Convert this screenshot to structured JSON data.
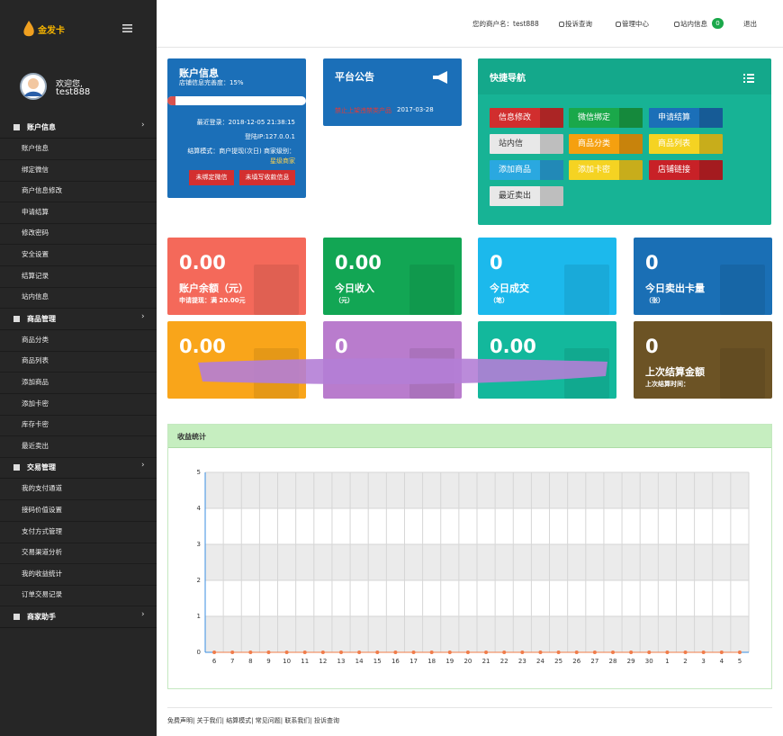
{
  "brand": "金发卡",
  "topbar": {
    "merchant": "您的商户名：test888",
    "items": [
      "投诉查询",
      "管理中心",
      "站内信息"
    ],
    "badge": "0",
    "logout": "退出"
  },
  "user": {
    "welcome": "欢迎您,",
    "name": "test888"
  },
  "menu": [
    {
      "title": "账户信息",
      "items": [
        "账户信息",
        "绑定微信",
        "商户信息修改",
        "申请结算",
        "修改密码",
        "安全设置",
        "结算记录",
        "站内信息"
      ]
    },
    {
      "title": "商品管理",
      "items": [
        "商品分类",
        "商品列表",
        "添加商品",
        "添加卡密",
        "库存卡密",
        "最近卖出"
      ]
    },
    {
      "title": "交易管理",
      "items": [
        "我的支付通道",
        "接码价值设置",
        "支付方式管理",
        "交易渠道分析",
        "我的收益统计",
        "订单交易记录"
      ]
    },
    {
      "title": "商家助手",
      "items": []
    }
  ],
  "account": {
    "title": "账户信息",
    "completeness": "店铺信息完善度：15%",
    "last_login": "最近登录：2018-12-05 21:38:15",
    "ip": "登陆IP:127.0.0.1",
    "mode": "结算模式：商户提现(次日) 商家级别：",
    "level": "星级商家",
    "buttons": [
      "未绑定微信",
      "未填写收款信息"
    ]
  },
  "notice": {
    "title": "平台公告",
    "text": "禁止上架违禁类产品",
    "date": "2017-03-28"
  },
  "quick_nav": {
    "title": "快捷导航",
    "buttons": [
      "信息修改",
      "微信绑定",
      "申请结算",
      "站内信",
      "商品分类",
      "商品列表",
      "添加商品",
      "添加卡密",
      "店铺链接",
      "最近卖出"
    ]
  },
  "stats": [
    {
      "value": "0.00",
      "label": "账户余额（元）",
      "sub": "申请提现：满 20.00元"
    },
    {
      "value": "0.00",
      "label": "今日收入",
      "sub": "（元）"
    },
    {
      "value": "0",
      "label": "今日成交",
      "sub": "（笔）"
    },
    {
      "value": "0",
      "label": "今日卖出卡量",
      "sub": "（张）"
    },
    {
      "value": "0.00"
    },
    {
      "value": "0"
    },
    {
      "value": "0.00"
    },
    {
      "value": "0",
      "label": "上次结算金额",
      "sub": "上次结算时间："
    }
  ],
  "chart_data": {
    "type": "line",
    "title": "收益统计",
    "categories": [
      "6",
      "7",
      "8",
      "9",
      "10",
      "11",
      "12",
      "13",
      "14",
      "15",
      "16",
      "17",
      "18",
      "19",
      "20",
      "21",
      "22",
      "23",
      "24",
      "25",
      "26",
      "27",
      "28",
      "29",
      "30",
      "1",
      "2",
      "3",
      "4",
      "5"
    ],
    "series": [
      {
        "name": "收益",
        "color": "#f07c4a",
        "values": [
          0,
          0,
          0,
          0,
          0,
          0,
          0,
          0,
          0,
          0,
          0,
          0,
          0,
          0,
          0,
          0,
          0,
          0,
          0,
          0,
          0,
          0,
          0,
          0,
          0,
          0,
          0,
          0,
          0,
          0
        ]
      }
    ],
    "ylim": [
      0,
      5
    ],
    "yticks": [
      0,
      1,
      2,
      3,
      4,
      5
    ],
    "grid": true
  },
  "footer": [
    "免费声明",
    "关于我们",
    "结算模式",
    "常见问题",
    "联系我们",
    "投诉查询"
  ]
}
